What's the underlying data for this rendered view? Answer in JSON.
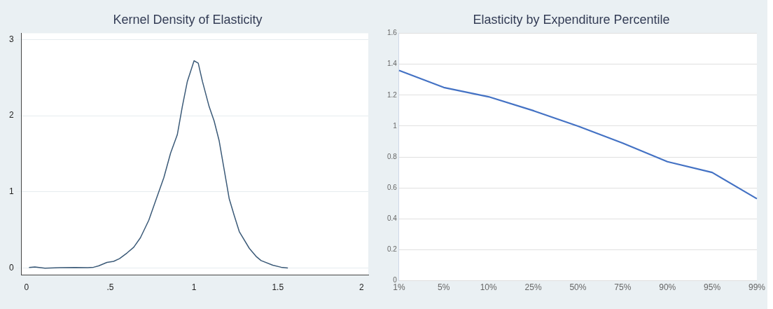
{
  "chart_data": [
    {
      "type": "line",
      "title": "Kernel Density of Elasticity",
      "x": [
        0.015,
        0.05,
        0.11,
        0.2,
        0.29,
        0.365,
        0.4,
        0.43,
        0.48,
        0.52,
        0.555,
        0.6,
        0.64,
        0.68,
        0.73,
        0.77,
        0.82,
        0.86,
        0.9,
        0.93,
        0.96,
        1.0,
        1.025,
        1.05,
        1.09,
        1.12,
        1.15,
        1.18,
        1.21,
        1.24,
        1.27,
        1.33,
        1.37,
        1.4,
        1.47,
        1.52,
        1.56
      ],
      "series": [
        {
          "color": "#3b5a78",
          "values": [
            0.01,
            0.017,
            0,
            0.007,
            0.01,
            0.007,
            0.013,
            0.03,
            0.076,
            0.09,
            0.126,
            0.2,
            0.275,
            0.4,
            0.63,
            0.88,
            1.19,
            1.51,
            1.75,
            2.12,
            2.45,
            2.72,
            2.69,
            2.45,
            2.12,
            1.93,
            1.67,
            1.29,
            0.91,
            0.69,
            0.48,
            0.26,
            0.156,
            0.1,
            0.04,
            0.013,
            0.003
          ]
        }
      ],
      "xlim": [
        -0.03,
        2.04
      ],
      "ylim": [
        -0.09,
        3.08
      ],
      "xticks": [
        0,
        {
          "value": 0.5,
          "label": ".5"
        },
        1,
        1.5,
        2
      ],
      "yticks": [
        0,
        1,
        2,
        3
      ],
      "grid": "y"
    },
    {
      "type": "line",
      "title": "Elasticity by Expenditure Percentile",
      "categories": [
        "1%",
        "5%",
        "10%",
        "25%",
        "50%",
        "75%",
        "90%",
        "95%",
        "99%"
      ],
      "series": [
        {
          "color": "#4472c4",
          "values": [
            1.36,
            1.25,
            1.19,
            1.1,
            1.0,
            0.89,
            0.77,
            0.7,
            0.53
          ]
        }
      ],
      "ylim": [
        0,
        1.6
      ],
      "yticks": [
        0,
        0.2,
        0.4,
        0.6,
        0.8,
        1,
        1.2,
        1.4,
        1.6
      ],
      "grid": "y"
    }
  ]
}
